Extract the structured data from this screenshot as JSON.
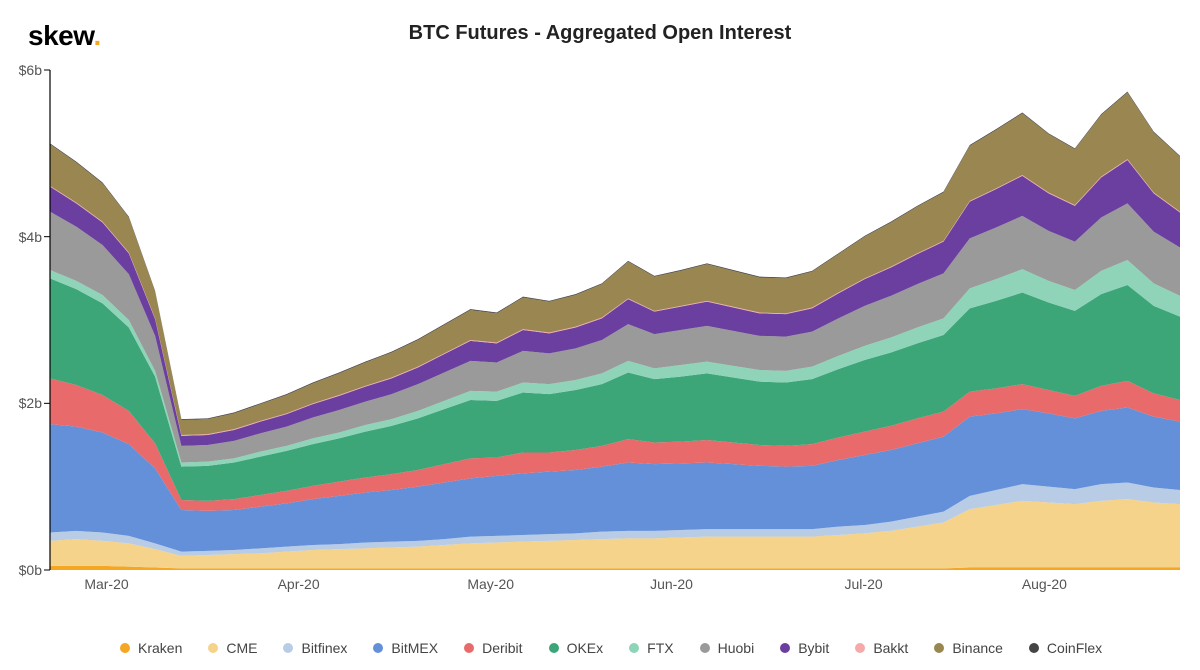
{
  "logo": {
    "text": "skew",
    "dot": "."
  },
  "chart": {
    "title": "BTC Futures - Aggregated Open Interest",
    "type": "stacked-area",
    "y": {
      "min": 0,
      "max": 6,
      "unit_prefix": "$",
      "unit_suffix": "b",
      "ticks": [
        0,
        2,
        4,
        6
      ],
      "tick_labels": [
        "$0b",
        "$2b",
        "$4b",
        "$6b"
      ],
      "label_fontsize": 14,
      "label_color": "#555555"
    },
    "x": {
      "ticks": [
        "Mar-20",
        "Apr-20",
        "May-20",
        "Jun-20",
        "Jul-20",
        "Aug-20"
      ],
      "tick_positions": [
        0.05,
        0.22,
        0.39,
        0.55,
        0.72,
        0.88
      ],
      "label_fontsize": 14,
      "label_color": "#555555"
    },
    "background_color": "#ffffff",
    "axis_color": "#000000",
    "n_points": 44,
    "series": [
      {
        "name": "Kraken",
        "color": "#f5a623",
        "values": [
          0.05,
          0.05,
          0.05,
          0.04,
          0.03,
          0.02,
          0.02,
          0.02,
          0.02,
          0.02,
          0.02,
          0.02,
          0.02,
          0.02,
          0.02,
          0.02,
          0.02,
          0.02,
          0.02,
          0.02,
          0.02,
          0.02,
          0.02,
          0.02,
          0.02,
          0.02,
          0.02,
          0.02,
          0.02,
          0.02,
          0.02,
          0.02,
          0.02,
          0.02,
          0.02,
          0.03,
          0.03,
          0.03,
          0.03,
          0.03,
          0.03,
          0.03,
          0.03,
          0.03
        ]
      },
      {
        "name": "CME",
        "color": "#f5d38a",
        "values": [
          0.3,
          0.32,
          0.3,
          0.28,
          0.22,
          0.15,
          0.16,
          0.17,
          0.18,
          0.2,
          0.22,
          0.23,
          0.24,
          0.25,
          0.26,
          0.28,
          0.3,
          0.31,
          0.32,
          0.33,
          0.34,
          0.35,
          0.36,
          0.36,
          0.37,
          0.38,
          0.38,
          0.38,
          0.38,
          0.38,
          0.4,
          0.42,
          0.45,
          0.5,
          0.55,
          0.7,
          0.75,
          0.8,
          0.78,
          0.76,
          0.8,
          0.82,
          0.78,
          0.76
        ]
      },
      {
        "name": "Bitfinex",
        "color": "#b9cce6",
        "values": [
          0.1,
          0.1,
          0.1,
          0.09,
          0.07,
          0.05,
          0.05,
          0.05,
          0.06,
          0.06,
          0.06,
          0.06,
          0.07,
          0.07,
          0.07,
          0.07,
          0.08,
          0.08,
          0.08,
          0.08,
          0.08,
          0.09,
          0.09,
          0.09,
          0.09,
          0.09,
          0.09,
          0.09,
          0.09,
          0.09,
          0.1,
          0.1,
          0.11,
          0.12,
          0.13,
          0.16,
          0.18,
          0.2,
          0.19,
          0.18,
          0.2,
          0.2,
          0.18,
          0.17
        ]
      },
      {
        "name": "BitMEX",
        "color": "#6390d9",
        "values": [
          1.3,
          1.25,
          1.2,
          1.1,
          0.9,
          0.5,
          0.48,
          0.48,
          0.5,
          0.52,
          0.55,
          0.58,
          0.6,
          0.62,
          0.65,
          0.68,
          0.7,
          0.72,
          0.74,
          0.75,
          0.76,
          0.78,
          0.82,
          0.8,
          0.8,
          0.8,
          0.78,
          0.76,
          0.75,
          0.76,
          0.8,
          0.84,
          0.86,
          0.88,
          0.9,
          0.95,
          0.92,
          0.9,
          0.88,
          0.85,
          0.88,
          0.9,
          0.85,
          0.82
        ]
      },
      {
        "name": "Deribit",
        "color": "#e86a6a",
        "values": [
          0.55,
          0.5,
          0.45,
          0.4,
          0.3,
          0.12,
          0.12,
          0.13,
          0.14,
          0.15,
          0.16,
          0.17,
          0.18,
          0.19,
          0.2,
          0.22,
          0.24,
          0.22,
          0.25,
          0.23,
          0.24,
          0.25,
          0.28,
          0.26,
          0.26,
          0.27,
          0.26,
          0.25,
          0.25,
          0.26,
          0.27,
          0.28,
          0.29,
          0.3,
          0.3,
          0.3,
          0.3,
          0.3,
          0.28,
          0.27,
          0.3,
          0.32,
          0.28,
          0.26
        ]
      },
      {
        "name": "OKEx",
        "color": "#3ca678",
        "values": [
          1.2,
          1.15,
          1.1,
          1.0,
          0.8,
          0.4,
          0.42,
          0.44,
          0.46,
          0.48,
          0.5,
          0.52,
          0.55,
          0.58,
          0.62,
          0.66,
          0.7,
          0.68,
          0.72,
          0.7,
          0.72,
          0.74,
          0.8,
          0.76,
          0.78,
          0.8,
          0.78,
          0.76,
          0.76,
          0.78,
          0.82,
          0.86,
          0.88,
          0.9,
          0.92,
          1.0,
          1.05,
          1.1,
          1.05,
          1.02,
          1.1,
          1.15,
          1.05,
          1.0
        ]
      },
      {
        "name": "FTX",
        "color": "#8fd4b8",
        "values": [
          0.1,
          0.1,
          0.1,
          0.09,
          0.07,
          0.05,
          0.05,
          0.05,
          0.06,
          0.06,
          0.07,
          0.07,
          0.08,
          0.08,
          0.09,
          0.1,
          0.11,
          0.11,
          0.12,
          0.12,
          0.12,
          0.13,
          0.14,
          0.13,
          0.14,
          0.14,
          0.14,
          0.14,
          0.14,
          0.15,
          0.16,
          0.17,
          0.18,
          0.19,
          0.2,
          0.24,
          0.26,
          0.28,
          0.26,
          0.25,
          0.28,
          0.3,
          0.27,
          0.25
        ]
      },
      {
        "name": "Huobi",
        "color": "#9a9a9a",
        "values": [
          0.7,
          0.65,
          0.6,
          0.55,
          0.42,
          0.2,
          0.2,
          0.21,
          0.22,
          0.23,
          0.25,
          0.27,
          0.28,
          0.3,
          0.32,
          0.34,
          0.36,
          0.35,
          0.38,
          0.37,
          0.38,
          0.4,
          0.44,
          0.41,
          0.42,
          0.43,
          0.42,
          0.41,
          0.41,
          0.42,
          0.45,
          0.48,
          0.5,
          0.52,
          0.54,
          0.6,
          0.62,
          0.64,
          0.6,
          0.58,
          0.64,
          0.68,
          0.62,
          0.58
        ]
      },
      {
        "name": "Bybit",
        "color": "#6b3fa0",
        "values": [
          0.3,
          0.28,
          0.27,
          0.25,
          0.2,
          0.12,
          0.12,
          0.13,
          0.14,
          0.15,
          0.16,
          0.17,
          0.18,
          0.19,
          0.2,
          0.22,
          0.24,
          0.23,
          0.25,
          0.24,
          0.25,
          0.26,
          0.3,
          0.27,
          0.28,
          0.29,
          0.28,
          0.27,
          0.27,
          0.28,
          0.3,
          0.32,
          0.34,
          0.36,
          0.38,
          0.44,
          0.46,
          0.48,
          0.45,
          0.43,
          0.48,
          0.52,
          0.46,
          0.42
        ]
      },
      {
        "name": "Bakkt",
        "color": "#f5a9a9",
        "values": [
          0.01,
          0.01,
          0.01,
          0.01,
          0.01,
          0.01,
          0.01,
          0.01,
          0.01,
          0.01,
          0.01,
          0.01,
          0.01,
          0.01,
          0.01,
          0.01,
          0.01,
          0.01,
          0.01,
          0.01,
          0.01,
          0.01,
          0.01,
          0.01,
          0.01,
          0.01,
          0.01,
          0.01,
          0.01,
          0.01,
          0.01,
          0.01,
          0.01,
          0.01,
          0.01,
          0.01,
          0.01,
          0.01,
          0.01,
          0.01,
          0.01,
          0.01,
          0.01,
          0.01
        ]
      },
      {
        "name": "Binance",
        "color": "#998650",
        "values": [
          0.5,
          0.48,
          0.46,
          0.42,
          0.32,
          0.18,
          0.18,
          0.19,
          0.2,
          0.22,
          0.24,
          0.26,
          0.28,
          0.3,
          0.32,
          0.34,
          0.36,
          0.35,
          0.38,
          0.37,
          0.38,
          0.4,
          0.44,
          0.41,
          0.42,
          0.44,
          0.43,
          0.42,
          0.42,
          0.43,
          0.46,
          0.5,
          0.53,
          0.56,
          0.58,
          0.66,
          0.7,
          0.74,
          0.7,
          0.67,
          0.74,
          0.8,
          0.72,
          0.66
        ]
      },
      {
        "name": "CoinFlex",
        "color": "#444444",
        "values": [
          0.01,
          0.01,
          0.01,
          0.01,
          0.01,
          0.01,
          0.01,
          0.01,
          0.01,
          0.01,
          0.01,
          0.01,
          0.01,
          0.01,
          0.01,
          0.01,
          0.01,
          0.01,
          0.01,
          0.01,
          0.01,
          0.01,
          0.01,
          0.01,
          0.01,
          0.01,
          0.01,
          0.01,
          0.01,
          0.01,
          0.01,
          0.01,
          0.01,
          0.01,
          0.01,
          0.01,
          0.01,
          0.01,
          0.01,
          0.01,
          0.01,
          0.01,
          0.01,
          0.01
        ]
      }
    ],
    "legend": {
      "rows": 2,
      "order": [
        "Kraken",
        "CME",
        "Bitfinex",
        "BitMEX",
        "Deribit",
        "OKEx",
        "FTX",
        "Huobi",
        "Bybit",
        "Bakkt",
        "Binance",
        "CoinFlex"
      ],
      "swatch_shape": "circle",
      "swatch_size": 10,
      "fontsize": 14
    }
  }
}
